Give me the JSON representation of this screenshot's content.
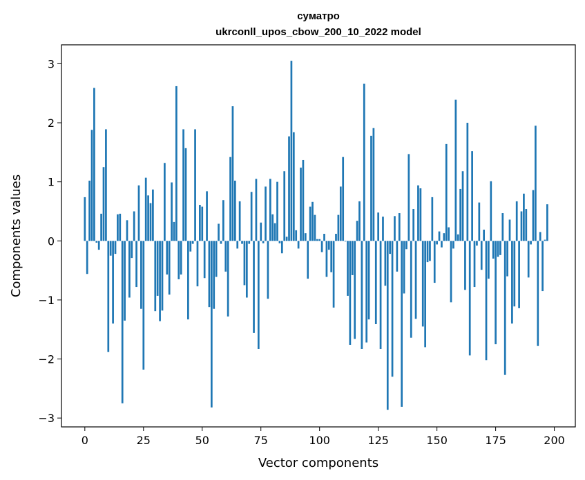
{
  "chart_data": {
    "type": "bar",
    "title_line1": "сyматро",
    "title_line2": "ukrconll_upos_cbow_200_10_2022 model",
    "xlabel": "Vector components",
    "ylabel": "Components values",
    "xlim": [
      -9.95,
      208.95
    ],
    "ylim": [
      -3.15,
      3.32
    ],
    "xticks": [
      0,
      25,
      50,
      75,
      100,
      125,
      150,
      175,
      200
    ],
    "yticks": [
      -3,
      -2,
      -1,
      0,
      1,
      2,
      3
    ],
    "ytick_labels": [
      "−3",
      "−2",
      "−1",
      "0",
      "1",
      "2",
      "3"
    ],
    "bar_color": "#1f77b4",
    "grid": false,
    "values": [
      0.74,
      -0.56,
      1.02,
      1.88,
      2.59,
      -0.03,
      -0.15,
      0.46,
      1.25,
      1.89,
      -1.88,
      -0.25,
      -1.4,
      -0.22,
      0.45,
      0.46,
      -2.75,
      -1.35,
      0.35,
      -0.96,
      -0.29,
      0.5,
      -0.78,
      0.94,
      -1.15,
      -2.18,
      1.07,
      0.77,
      0.64,
      0.87,
      -1.19,
      -0.93,
      -1.36,
      -1.18,
      1.32,
      -0.57,
      -0.91,
      0.99,
      0.32,
      2.62,
      -0.65,
      -0.57,
      1.89,
      1.57,
      -1.33,
      -0.18,
      -0.05,
      1.89,
      -0.77,
      0.61,
      0.58,
      -0.63,
      0.84,
      -1.12,
      -2.82,
      -1.15,
      -0.61,
      0.29,
      -0.05,
      0.69,
      -0.52,
      -1.28,
      1.42,
      2.28,
      1.02,
      -0.13,
      0.67,
      -0.05,
      -0.75,
      -0.96,
      -0.05,
      0.83,
      -1.56,
      1.05,
      -1.83,
      0.31,
      -0.04,
      0.92,
      -0.98,
      1.05,
      0.45,
      0.3,
      1.0,
      -0.04,
      -0.21,
      1.18,
      0.07,
      1.77,
      3.05,
      1.84,
      0.18,
      -0.13,
      1.24,
      1.37,
      0.13,
      -0.64,
      0.58,
      0.66,
      0.44,
      0.03,
      0.03,
      -0.19,
      0.12,
      -0.61,
      -0.15,
      -0.53,
      -1.13,
      0.12,
      0.44,
      0.92,
      1.42,
      -0.01,
      -0.93,
      -1.76,
      -0.58,
      -1.66,
      0.34,
      0.67,
      -1.83,
      2.66,
      -1.72,
      -1.33,
      1.78,
      1.91,
      -1.41,
      0.48,
      -1.83,
      0.41,
      -0.76,
      -2.86,
      -0.22,
      -2.3,
      0.42,
      -0.52,
      0.47,
      -2.81,
      -0.89,
      -0.14,
      1.47,
      -1.64,
      0.54,
      -1.32,
      0.94,
      0.89,
      -1.45,
      -1.8,
      -0.36,
      -0.34,
      0.74,
      -0.71,
      -0.06,
      0.16,
      -0.11,
      0.13,
      1.64,
      0.23,
      -1.04,
      -0.13,
      2.39,
      0.11,
      0.88,
      1.18,
      -0.83,
      2.0,
      -1.94,
      1.52,
      -0.78,
      -0.08,
      0.65,
      -0.49,
      0.19,
      -2.02,
      -0.64,
      1.01,
      -0.3,
      -1.75,
      -0.27,
      -0.24,
      0.47,
      -2.27,
      -0.6,
      0.36,
      -1.4,
      -1.11,
      0.67,
      -1.14,
      0.5,
      0.8,
      0.54,
      -0.62,
      -0.06,
      0.86,
      1.95,
      -1.78,
      0.15,
      -0.85,
      0.02,
      0.62
    ]
  }
}
